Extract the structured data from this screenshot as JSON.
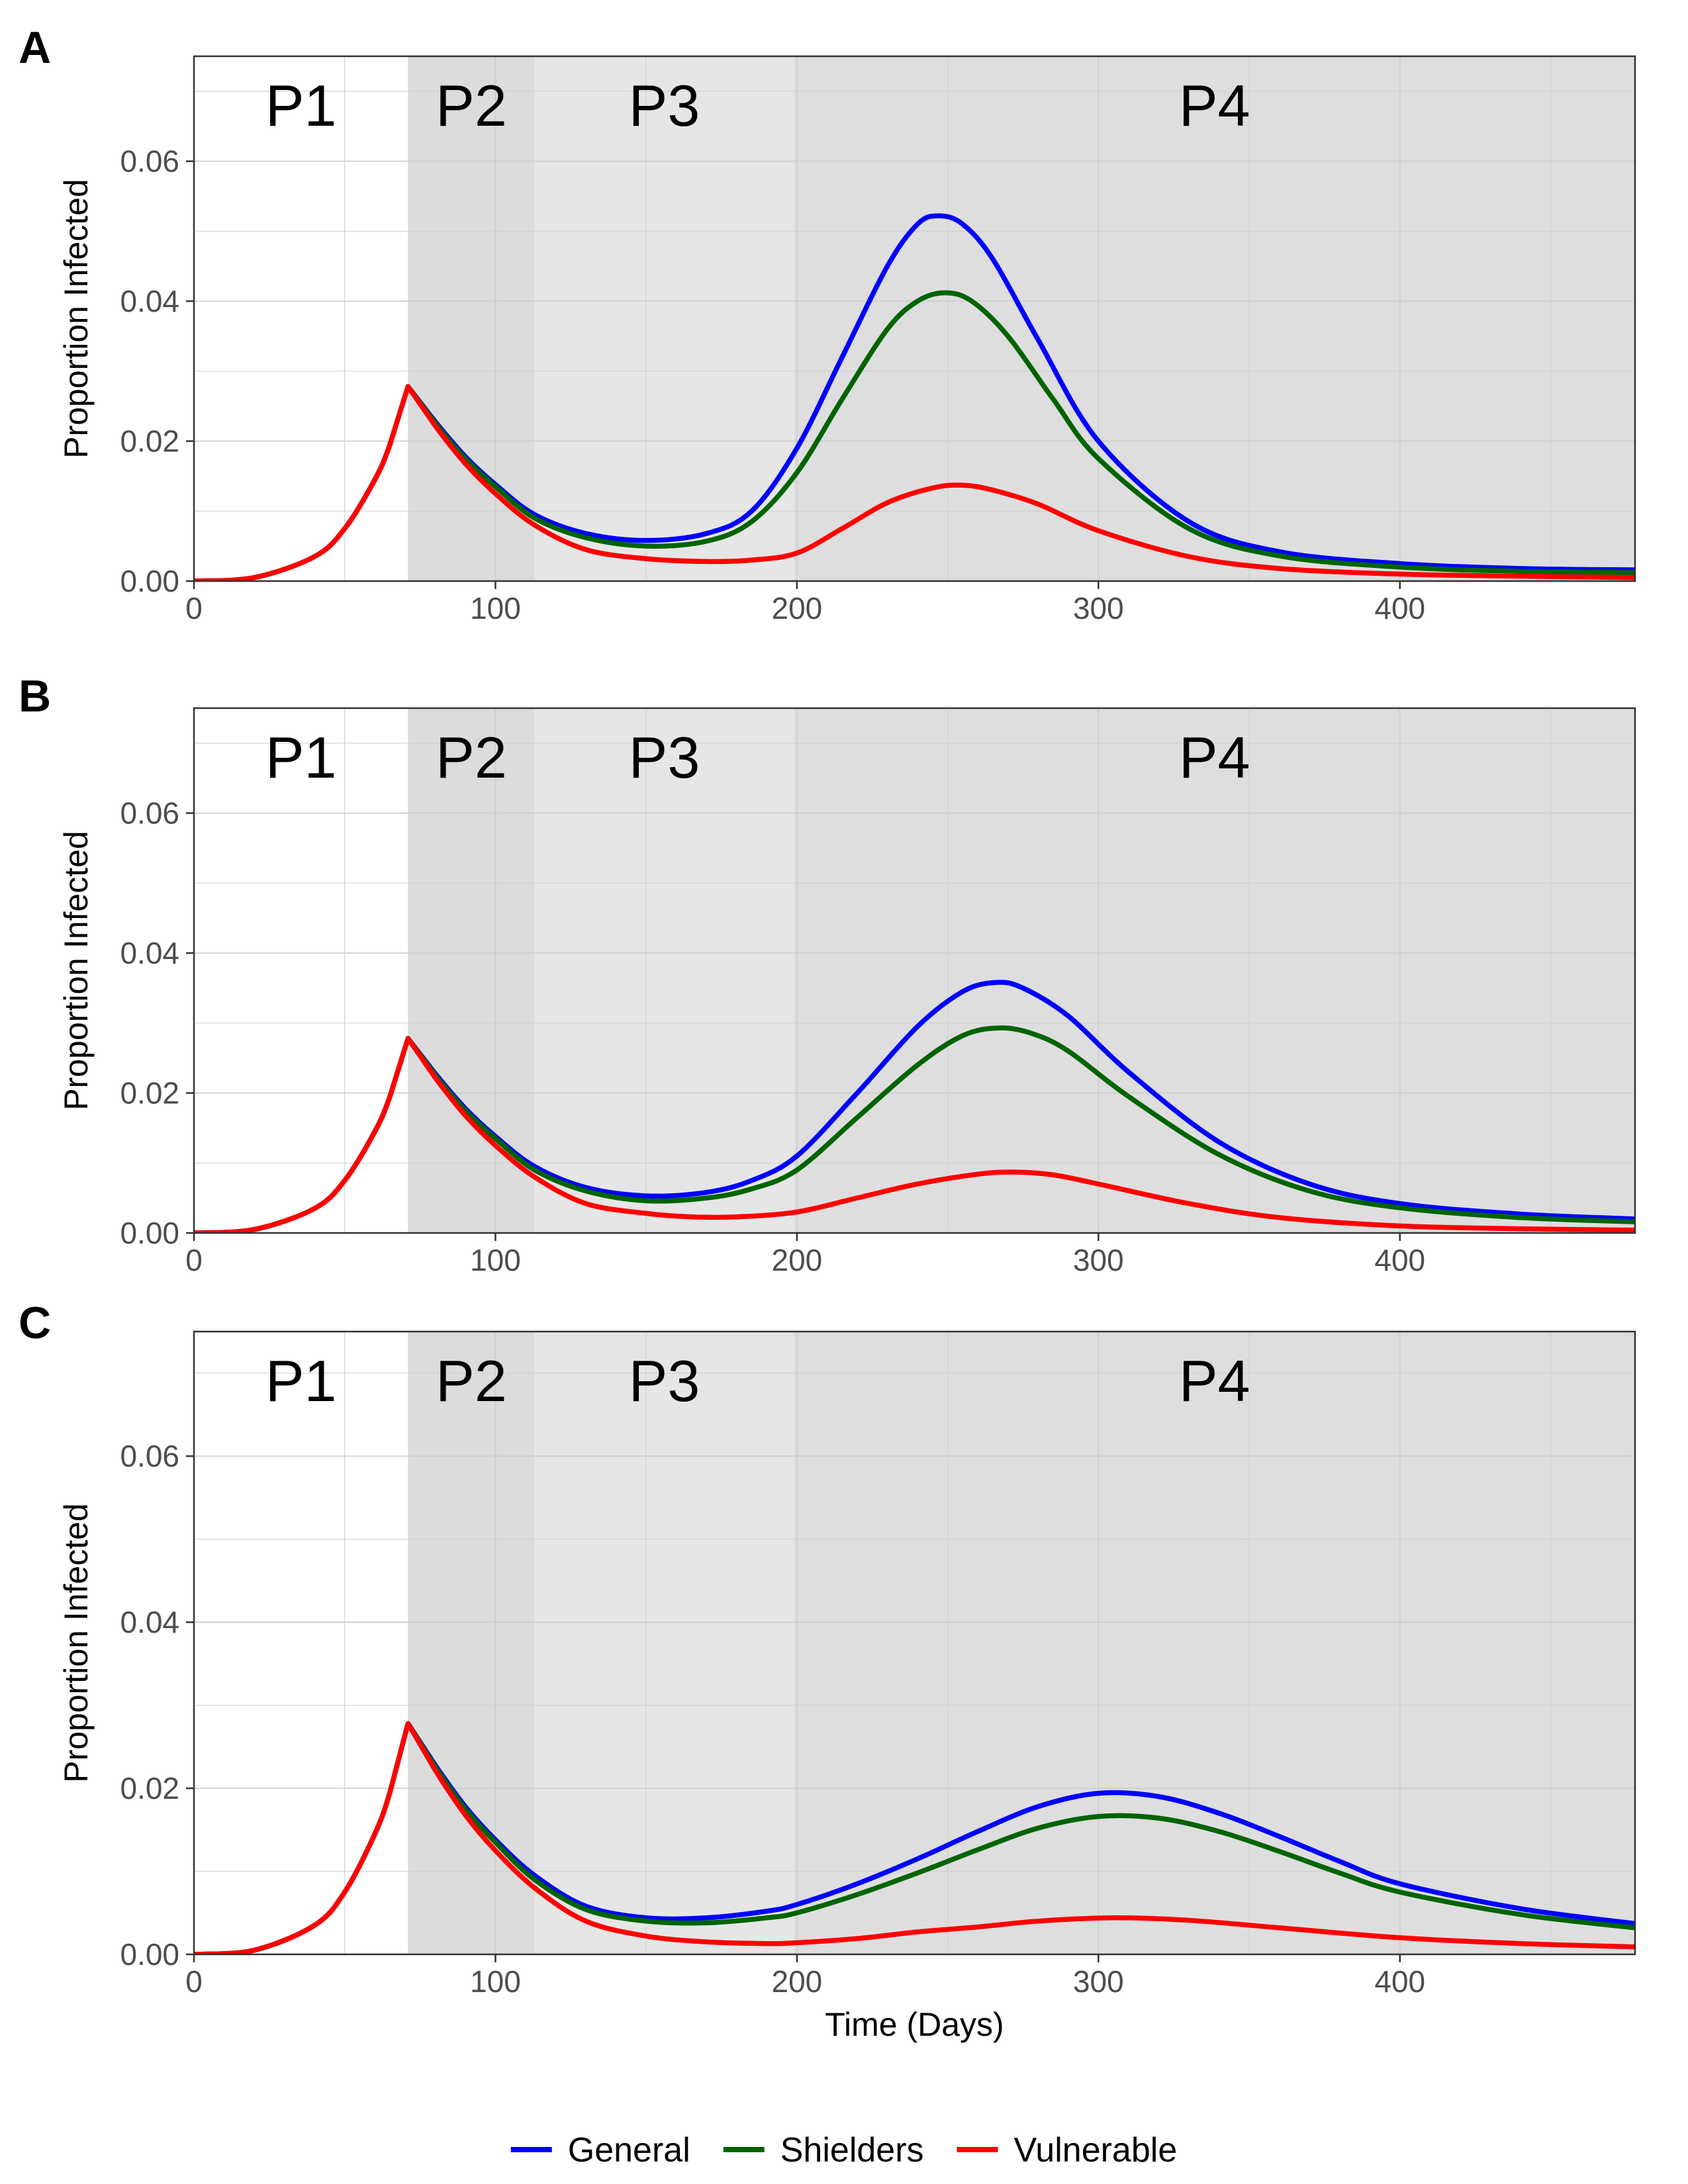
{
  "chart_data": [
    {
      "type": "line",
      "panel": "A",
      "xlabel": "",
      "ylabel": "Proportion Infected",
      "xlim": [
        0,
        478
      ],
      "ylim": [
        0,
        0.075
      ],
      "xticks": [
        0,
        100,
        200,
        300,
        400
      ],
      "yticks": [
        0.0,
        0.02,
        0.04,
        0.06
      ],
      "grid": true,
      "phases": [
        {
          "label": "P1",
          "start": 0,
          "end": 71,
          "color": "#ffffff"
        },
        {
          "label": "P2",
          "start": 71,
          "end": 113,
          "color": "#dcdcdc"
        },
        {
          "label": "P3",
          "start": 113,
          "end": 199,
          "color": "#e6e6e6"
        },
        {
          "label": "P4",
          "start": 199,
          "end": 478,
          "color": "#dedede"
        }
      ],
      "series": [
        {
          "name": "General",
          "color": "#0000ff",
          "x": [
            0,
            20,
            40,
            50,
            60,
            65,
            71,
            80,
            90,
            100,
            113,
            130,
            150,
            170,
            185,
            200,
            215,
            230,
            240,
            247,
            255,
            265,
            280,
            300,
            330,
            360,
            400,
            440,
            478
          ],
          "y": [
            0,
            0.0005,
            0.0035,
            0.0075,
            0.0145,
            0.0195,
            0.0278,
            0.0228,
            0.0178,
            0.0138,
            0.0095,
            0.0068,
            0.0058,
            0.0068,
            0.01,
            0.019,
            0.032,
            0.045,
            0.051,
            0.0522,
            0.051,
            0.046,
            0.0345,
            0.02,
            0.0085,
            0.0042,
            0.0025,
            0.0018,
            0.0016
          ]
        },
        {
          "name": "Shielders",
          "color": "#006400",
          "x": [
            0,
            20,
            40,
            50,
            60,
            65,
            71,
            80,
            90,
            100,
            113,
            130,
            150,
            170,
            185,
            200,
            215,
            230,
            240,
            249,
            258,
            270,
            285,
            300,
            330,
            360,
            400,
            440,
            478
          ],
          "y": [
            0,
            0.0005,
            0.0035,
            0.0075,
            0.0145,
            0.0195,
            0.0278,
            0.0226,
            0.0175,
            0.0135,
            0.009,
            0.0062,
            0.005,
            0.0057,
            0.0085,
            0.0155,
            0.026,
            0.036,
            0.04,
            0.0412,
            0.04,
            0.035,
            0.026,
            0.0175,
            0.0075,
            0.0036,
            0.002,
            0.0014,
            0.0012
          ]
        },
        {
          "name": "Vulnerable",
          "color": "#ff0000",
          "x": [
            0,
            20,
            40,
            50,
            60,
            65,
            71,
            80,
            90,
            100,
            113,
            130,
            150,
            170,
            185,
            200,
            215,
            230,
            245,
            255,
            265,
            280,
            300,
            330,
            360,
            400,
            440,
            478
          ],
          "y": [
            0,
            0.0005,
            0.0035,
            0.0075,
            0.0145,
            0.0195,
            0.0278,
            0.0222,
            0.0168,
            0.0125,
            0.008,
            0.0045,
            0.0032,
            0.0028,
            0.003,
            0.004,
            0.0075,
            0.0112,
            0.0133,
            0.0137,
            0.013,
            0.011,
            0.0072,
            0.0035,
            0.0018,
            0.001,
            0.0007,
            0.0005
          ]
        }
      ]
    },
    {
      "type": "line",
      "panel": "B",
      "xlabel": "",
      "ylabel": "Proportion Infected",
      "xlim": [
        0,
        478
      ],
      "ylim": [
        0,
        0.075
      ],
      "xticks": [
        0,
        100,
        200,
        300,
        400
      ],
      "yticks": [
        0.0,
        0.02,
        0.04,
        0.06
      ],
      "grid": true,
      "phases": [
        {
          "label": "P1",
          "start": 0,
          "end": 71,
          "color": "#ffffff"
        },
        {
          "label": "P2",
          "start": 71,
          "end": 113,
          "color": "#dcdcdc"
        },
        {
          "label": "P3",
          "start": 113,
          "end": 199,
          "color": "#e6e6e6"
        },
        {
          "label": "P4",
          "start": 199,
          "end": 478,
          "color": "#dedede"
        }
      ],
      "series": [
        {
          "name": "General",
          "color": "#0000ff",
          "x": [
            0,
            20,
            40,
            50,
            60,
            65,
            71,
            80,
            90,
            100,
            113,
            130,
            150,
            170,
            185,
            200,
            220,
            240,
            255,
            266,
            275,
            290,
            310,
            340,
            370,
            400,
            440,
            478
          ],
          "y": [
            0,
            0.0005,
            0.0035,
            0.0075,
            0.0145,
            0.0195,
            0.0278,
            0.0228,
            0.0178,
            0.0138,
            0.0095,
            0.0065,
            0.0053,
            0.0058,
            0.0075,
            0.011,
            0.02,
            0.0295,
            0.0345,
            0.0358,
            0.035,
            0.031,
            0.023,
            0.013,
            0.007,
            0.0042,
            0.0027,
            0.002
          ]
        },
        {
          "name": "Shielders",
          "color": "#006400",
          "x": [
            0,
            20,
            40,
            50,
            60,
            65,
            71,
            80,
            90,
            100,
            113,
            130,
            150,
            170,
            185,
            200,
            220,
            240,
            255,
            267,
            278,
            290,
            310,
            340,
            370,
            400,
            440,
            478
          ],
          "y": [
            0,
            0.0005,
            0.0035,
            0.0075,
            0.0145,
            0.0195,
            0.0278,
            0.0226,
            0.0175,
            0.0135,
            0.009,
            0.006,
            0.0046,
            0.005,
            0.0063,
            0.009,
            0.0165,
            0.024,
            0.0282,
            0.0293,
            0.0285,
            0.026,
            0.0195,
            0.0112,
            0.006,
            0.0036,
            0.0022,
            0.0016
          ]
        },
        {
          "name": "Vulnerable",
          "color": "#ff0000",
          "x": [
            0,
            20,
            40,
            50,
            60,
            65,
            71,
            80,
            90,
            100,
            113,
            130,
            150,
            165,
            180,
            200,
            220,
            240,
            260,
            272,
            285,
            300,
            330,
            360,
            400,
            440,
            478
          ],
          "y": [
            0,
            0.0005,
            0.0035,
            0.0075,
            0.0145,
            0.0195,
            0.0278,
            0.0222,
            0.0168,
            0.0125,
            0.008,
            0.0042,
            0.0028,
            0.0023,
            0.0023,
            0.003,
            0.005,
            0.007,
            0.0084,
            0.0087,
            0.0083,
            0.007,
            0.0042,
            0.0022,
            0.001,
            0.0006,
            0.0004
          ]
        }
      ]
    },
    {
      "type": "line",
      "panel": "C",
      "xlabel": "Time (Days)",
      "ylabel": "Proportion Infected",
      "xlim": [
        0,
        478
      ],
      "ylim": [
        0,
        0.075
      ],
      "xticks": [
        0,
        100,
        200,
        300,
        400
      ],
      "yticks": [
        0.0,
        0.02,
        0.04,
        0.06
      ],
      "grid": true,
      "phases": [
        {
          "label": "P1",
          "start": 0,
          "end": 71,
          "color": "#ffffff"
        },
        {
          "label": "P2",
          "start": 71,
          "end": 113,
          "color": "#dcdcdc"
        },
        {
          "label": "P3",
          "start": 113,
          "end": 199,
          "color": "#e6e6e6"
        },
        {
          "label": "P4",
          "start": 199,
          "end": 478,
          "color": "#dedede"
        }
      ],
      "series": [
        {
          "name": "General",
          "color": "#0000ff",
          "x": [
            0,
            20,
            40,
            50,
            60,
            65,
            71,
            80,
            90,
            100,
            113,
            130,
            150,
            170,
            190,
            200,
            220,
            240,
            260,
            280,
            300,
            320,
            340,
            360,
            380,
            400,
            440,
            478
          ],
          "y": [
            0,
            0.0005,
            0.0035,
            0.0075,
            0.0145,
            0.0195,
            0.0278,
            0.0228,
            0.0178,
            0.0138,
            0.0095,
            0.0058,
            0.0044,
            0.0044,
            0.0052,
            0.006,
            0.0085,
            0.0115,
            0.0148,
            0.0178,
            0.0194,
            0.019,
            0.017,
            0.0142,
            0.0112,
            0.0085,
            0.0055,
            0.0037
          ]
        },
        {
          "name": "Shielders",
          "color": "#006400",
          "x": [
            0,
            20,
            40,
            50,
            60,
            65,
            71,
            80,
            90,
            100,
            113,
            130,
            150,
            170,
            190,
            200,
            220,
            240,
            260,
            280,
            300,
            320,
            340,
            360,
            380,
            400,
            440,
            478
          ],
          "y": [
            0,
            0.0005,
            0.0035,
            0.0075,
            0.0145,
            0.0195,
            0.0278,
            0.0226,
            0.0175,
            0.0135,
            0.009,
            0.0054,
            0.004,
            0.0038,
            0.0044,
            0.005,
            0.0072,
            0.0098,
            0.0126,
            0.0152,
            0.0166,
            0.0164,
            0.0148,
            0.0124,
            0.0098,
            0.0075,
            0.0048,
            0.0032
          ]
        },
        {
          "name": "Vulnerable",
          "color": "#ff0000",
          "x": [
            0,
            20,
            40,
            50,
            60,
            65,
            71,
            80,
            90,
            100,
            113,
            130,
            150,
            170,
            190,
            200,
            220,
            240,
            260,
            280,
            305,
            330,
            360,
            400,
            440,
            478
          ],
          "y": [
            0,
            0.0005,
            0.0035,
            0.0075,
            0.0145,
            0.0195,
            0.0278,
            0.0222,
            0.0168,
            0.0125,
            0.008,
            0.004,
            0.0022,
            0.0015,
            0.0013,
            0.0014,
            0.0019,
            0.0027,
            0.0033,
            0.004,
            0.0044,
            0.0041,
            0.0032,
            0.002,
            0.0013,
            0.0009
          ]
        }
      ]
    }
  ],
  "legend": {
    "placement": "bottom",
    "items": [
      {
        "name": "General",
        "color": "#0000ff"
      },
      {
        "name": "Shielders",
        "color": "#006400"
      },
      {
        "name": "Vulnerable",
        "color": "#ff0000"
      }
    ]
  }
}
